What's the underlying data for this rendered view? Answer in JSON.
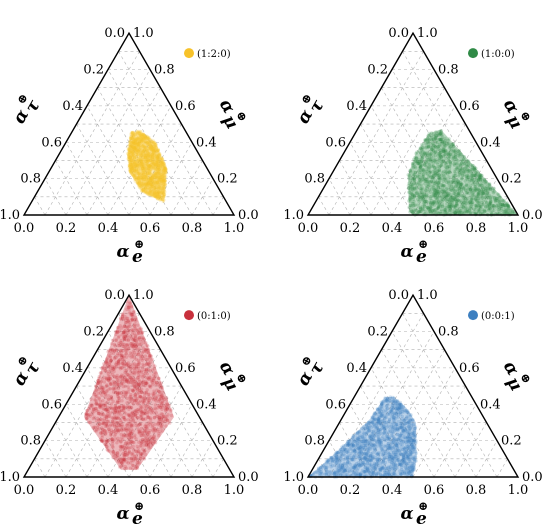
{
  "chart_data": [
    {
      "type": "ternary-scatter",
      "legend": "(1:2:0)",
      "color": "#f7c22a",
      "a_label": "α",
      "a_sub": "τ",
      "a_sup": "⊕",
      "b_label": "α",
      "b_sub": "μ",
      "b_sup": "⊕",
      "c_label": "α",
      "c_sub": "e",
      "c_sup": "⊕",
      "ticks": [
        "0.0",
        "0.2",
        "0.4",
        "0.6",
        "0.8",
        "1.0"
      ],
      "region": [
        [
          0.49,
          0.34
        ],
        [
          0.52,
          0.46
        ],
        [
          0.6,
          0.46
        ],
        [
          0.71,
          0.4
        ],
        [
          0.74,
          0.25
        ],
        [
          0.68,
          0.07
        ],
        [
          0.57,
          0.13
        ],
        [
          0.5,
          0.24
        ]
      ]
    },
    {
      "type": "ternary-scatter",
      "legend": "(1:0:0)",
      "color": "#2f8a46",
      "a_label": "α",
      "a_sub": "τ",
      "a_sup": "⊕",
      "b_label": "α",
      "b_sub": "μ",
      "b_sup": "⊕",
      "c_label": "α",
      "c_sub": "e",
      "c_sup": "⊕",
      "ticks": [
        "0.0",
        "0.2",
        "0.4",
        "0.6",
        "0.8",
        "1.0"
      ],
      "region": [
        [
          0.48,
          0.02
        ],
        [
          0.5,
          0.0
        ],
        [
          1.0,
          0.0
        ],
        [
          0.75,
          0.47
        ],
        [
          0.64,
          0.45
        ],
        [
          0.52,
          0.34
        ],
        [
          0.47,
          0.22
        ]
      ]
    },
    {
      "type": "ternary-scatter",
      "legend": "(0:1:0)",
      "color": "#c8303c",
      "a_label": "α",
      "a_sub": "τ",
      "a_sup": "⊕",
      "b_label": "α",
      "b_sub": "μ",
      "b_sup": "⊕",
      "c_label": "α",
      "c_sub": "e",
      "c_sup": "⊕",
      "ticks": [
        "0.0",
        "0.2",
        "0.4",
        "0.6",
        "0.8",
        "1.0"
      ],
      "region": [
        [
          0.5,
          1.0
        ],
        [
          0.18,
          0.33
        ],
        [
          0.46,
          0.04
        ],
        [
          0.54,
          0.04
        ],
        [
          0.82,
          0.33
        ]
      ]
    },
    {
      "type": "ternary-scatter",
      "legend": "(0:0:1)",
      "color": "#3c7fc0",
      "a_label": "α",
      "a_sub": "τ",
      "a_sup": "⊕",
      "b_label": "α",
      "b_sub": "μ",
      "b_sup": "⊕",
      "c_label": "α",
      "c_sub": "e",
      "c_sup": "⊕",
      "ticks": [
        "0.0",
        "0.2",
        "0.4",
        "0.6",
        "0.8",
        "1.0"
      ],
      "region": [
        [
          0.0,
          0.0
        ],
        [
          0.5,
          0.0
        ],
        [
          0.52,
          0.1
        ],
        [
          0.52,
          0.3
        ],
        [
          0.45,
          0.38
        ],
        [
          0.34,
          0.44
        ],
        [
          0.26,
          0.44
        ],
        [
          0.2,
          0.32
        ],
        [
          0.08,
          0.14
        ]
      ]
    }
  ]
}
